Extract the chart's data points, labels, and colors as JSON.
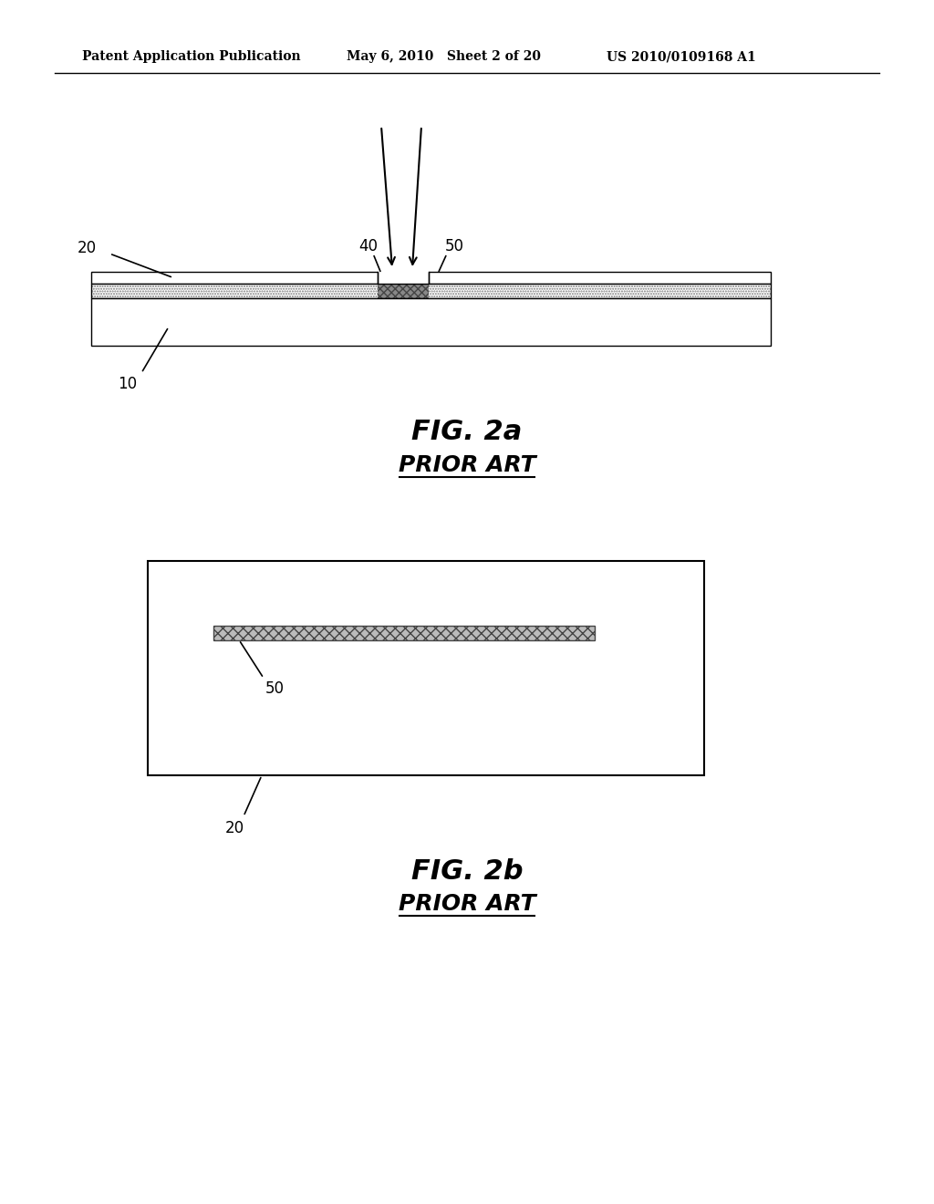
{
  "bg_color": "#ffffff",
  "header_left": "Patent Application Publication",
  "header_mid": "May 6, 2010   Sheet 2 of 20",
  "header_right": "US 2010/0109168 A1",
  "fig2a_title": "FIG. 2a",
  "fig2a_subtitle": "PRIOR ART",
  "fig2b_title": "FIG. 2b",
  "fig2b_subtitle": "PRIOR ART",
  "line_color": "#000000"
}
